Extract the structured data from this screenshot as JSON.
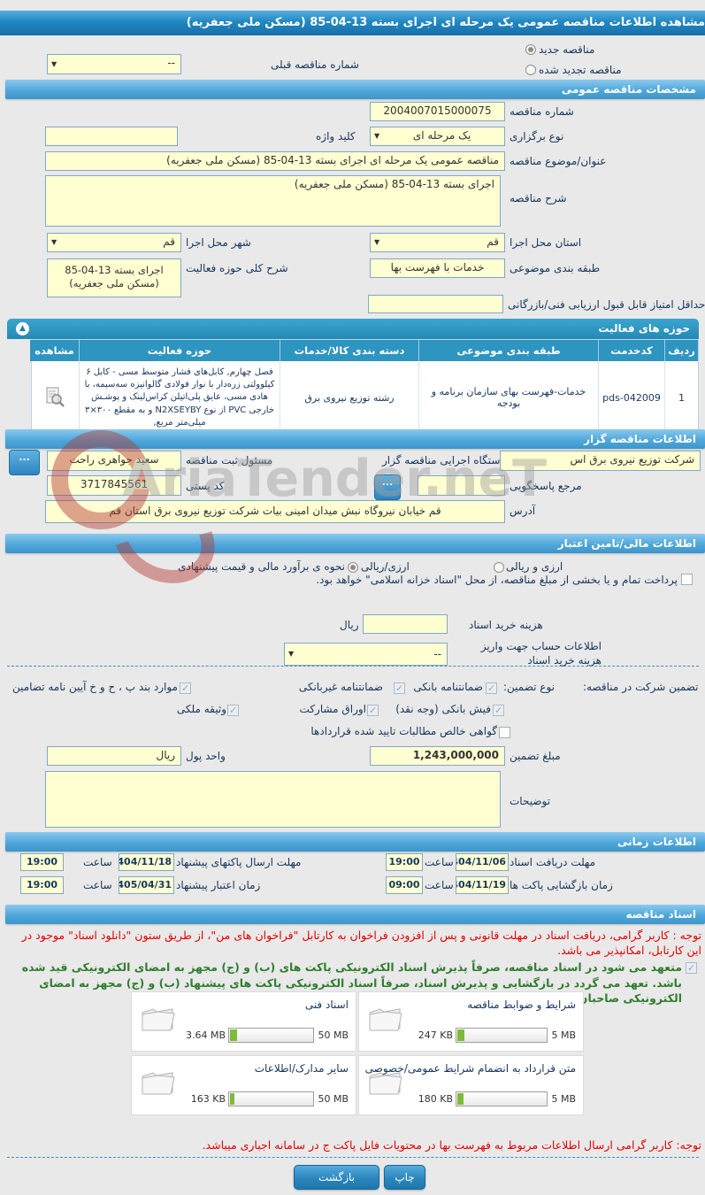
{
  "title": "مشاهده اطلاعات مناقصه عمومی یک مرحله ای اجرای بسته ‎85-04-13‎ (مسکن ملی جعفریه)",
  "watermark": {
    "text": "AriaTender.neT"
  },
  "top": {
    "radio_new": "مناقصه جدید",
    "radio_renewed": "مناقصه تجدید شده",
    "prev_label": "شماره مناقصه قبلی",
    "prev_value": "--"
  },
  "general": {
    "header": "مشخصات مناقصه عمومی",
    "number_label": "شماره مناقصه",
    "number_value": "2004007015000075",
    "type_label": "نوع برگزاری",
    "type_value": "یک مرحله ای",
    "keyword_label": "کلید واژه",
    "keyword_value": "",
    "subject_label": "عنوان/موضوع مناقصه",
    "subject_value": "مناقصه عمومی یک مرحله ای اجرای بسته ‎85-04-13‎ (مسکن ملی جعفریه)",
    "desc_label": "شرح مناقصه",
    "desc_value": "اجرای بسته ‎85-04-13‎ (مسکن ملی جعفریه)",
    "province_label": "استان محل اجرا",
    "province_value": "قم",
    "city_label": "شهر محل اجرا",
    "city_value": "قم",
    "category_label": "طبقه بندی موضوعی",
    "category_value": "خدمات با فهرست بها",
    "scope_label": "شرح کلی حوزه فعالیت",
    "scope_value": "اجرای بسته ‎85-04-13‎ (مسکن ملی جعفریه)",
    "min_score_label": "حداقل امتیاز قابل قبول ارزیابی فنی/بازرگانی",
    "min_score_value": ""
  },
  "activity": {
    "header": "حوزه های فعالیت",
    "columns": [
      "ردیف",
      "کدخدمت",
      "طبقه بندی موضوعی",
      "دسته بندی کالا/خدمات",
      "حوزه فعالیت",
      "مشاهده"
    ],
    "row": {
      "index": "1",
      "code": "pds-042009",
      "category": "خدمات-فهرست بهای سازمان برنامه و بودجه",
      "group": "رشته توزیع نیروی برق",
      "field": "فصل چهارم, کابل‌های فشار متوسط مسی - کابل ۶ کیلوولتی زره‌دار با نوار فولادی گالوانیزه سه‌سیمه، با هادی مسی، عایق پلی‌اتیلن کراس‌لینک و پوشـش خارجی PVC از نوع N2XSEYBY و به مقطع ‎۳×۳۰۰‎ میلی‌متر مربع,"
    }
  },
  "agency": {
    "header": "اطلاعات مناقصه گزار",
    "org_label": "نام دستگاه اجرایی مناقصه گزار",
    "org_value": "شرکت توزیع نیروی برق اس",
    "registrar_label": "مسئول ثبت مناقصه",
    "registrar_value": "سعید جواهری راحت",
    "contact_label": "مرجع پاسخگویی",
    "contact_value": "",
    "postal_label": "کد پستی",
    "postal_value": "3717845561",
    "address_label": "آدرس",
    "address_value": "قم خیابان نیروگاه نبش میدان امینی بیات شرکت توزیع نیروی برق استان قم",
    "dots": "..."
  },
  "financial": {
    "header": "اطلاعات مالی/تامین اعتبار",
    "estimate_label": "نحوه ی برآورد مالی و قیمت پیشنهادی",
    "radio_rial": "ارزی/ریالی",
    "radio_both": "ارزی و ریالی",
    "treasury_note": "پرداخت تمام و یا بخشی از مبلغ مناقصه، از محل \"اسناد خزانه اسلامی\" خواهد بود.",
    "doc_fee_label": "هزینه خرید اسناد",
    "doc_fee_value": "",
    "doc_fee_unit": "ریال",
    "account_label": "اطلاعات حساب جهت واریز هزینه خرید اسناد",
    "account_value": "--"
  },
  "guarantee": {
    "title": "تضمین شرکت در مناقصه:",
    "type_label": "نوع تضمین:",
    "opt_bank": "ضمانتنامه بانکی",
    "opt_nonbank": "ضمانتنامه غیربانکی",
    "opt_bylaws": "موارد بند پ ، ح و خ آیین نامه تضامین",
    "opt_cash": "فیش بانکی (وجه نقد)",
    "opt_bonds": "اوراق مشارکت",
    "opt_estate": "وثیقه ملکی",
    "opt_claims": "گواهی خالص مطالبات تایید شده قراردادها",
    "amount_label": "مبلغ تضمین",
    "amount_value": "1,243,000,000",
    "currency_label": "واحد پول",
    "currency_value": "ریال",
    "notes_label": "توضیحات",
    "notes_value": ""
  },
  "schedule": {
    "header": "اطلاعات زمانی",
    "hour_label": "ساعت",
    "items": [
      {
        "label": "مهلت دریافت اسناد",
        "date": "1404/11/06",
        "time": "19:00"
      },
      {
        "label": "مهلت ارسال پاکتهای پیشنهاد",
        "date": "1404/11/18",
        "time": "19:00"
      },
      {
        "label": "زمان بازگشایی پاکت ها",
        "date": "1404/11/19",
        "time": "09:00"
      },
      {
        "label": "زمان اعتبار پیشنهاد",
        "date": "1405/04/31",
        "time": "19:00"
      }
    ]
  },
  "documents": {
    "header": "اسناد مناقصه",
    "notice": "توجه : کاربر گرامی، دریافت اسناد در مهلت قانونی و پس از افزودن فراخوان به کارتابل \"فراخوان های من\"، از طریق ستون \"دانلود اسناد\" موجود در این کارتابل، امکانپذیر می باشد.",
    "agreement": "متعهد می شود در اسناد مناقصه، صرفاً پذیرش اسناد الکترونیکی پاکت های (ب) و (ج) مجهز به امضای الکترونیکی قید شده باشد. تعهد می گردد در بازگشایی و پذیرش اسناد، صرفاً اسناد الکترونیکی پاکت های پیشنهاد (ب) و (ج) مجهز به امضای الکترونیکی صاحبان امضای مجاز مورد پذیرش واقع گردد.",
    "files": [
      {
        "title": "شرایط و ضوابط مناقصه",
        "size": "247 KB",
        "max": "5 MB",
        "percent": 8
      },
      {
        "title": "اسناد فنی",
        "size": "3.64 MB",
        "max": "50 MB",
        "percent": 8
      },
      {
        "title": "متن قرارداد به انضمام شرایط عمومی/خصوصی",
        "size": "180 KB",
        "max": "5 MB",
        "percent": 7
      },
      {
        "title": "سایر مدارک/اطلاعات",
        "size": "163 KB",
        "max": "50 MB",
        "percent": 5
      }
    ],
    "footer_notice": "توجه: کاربر گرامی ارسال اطلاعات مربوط به فهرست بها در محتویات فایل پاکت ج در سامانه اجباری میباشد."
  },
  "actions": {
    "back": "بازگشت",
    "print": "چاپ"
  }
}
